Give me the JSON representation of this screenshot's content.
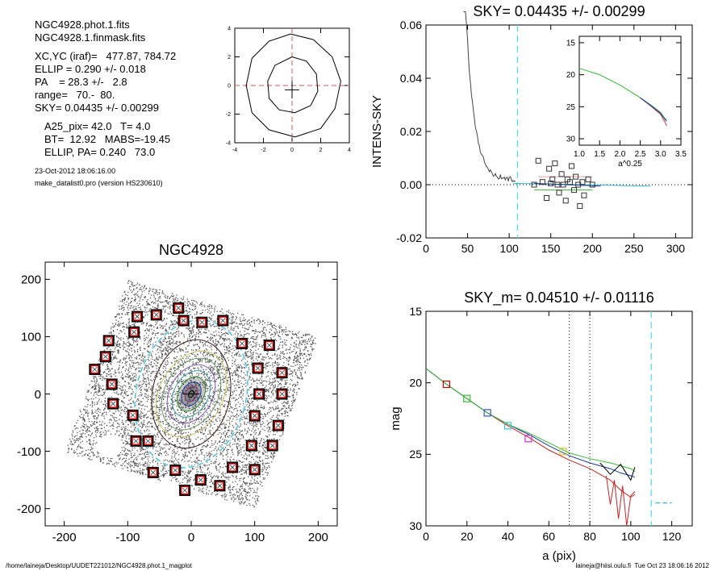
{
  "info": {
    "block1": [
      "NGC4928.phot.1.fits",
      "NGC4928.1.finmask.fits"
    ],
    "block2": [
      "XC,YC (iraf)=   477.87, 784.72",
      "ELLIP = 0.290 +/- 0.018",
      "PA    = 28.3 +/-   2.8",
      "range=   70.-  80.",
      "SKY= 0.04435 +/- 0.00299"
    ],
    "block3": [
      "A25_pix= 42.0   T= 4.0",
      "BT=  12.92   MABS=-19.45",
      "ELLIP, PA= 0.240   73.0"
    ],
    "date": "23-Oct-2012 18:06:16.00",
    "program": "make_datalist0.pro (version HS230610)"
  },
  "footer": {
    "left": "/home/laineja/Desktop/UUDET221012/NGC4928.phot.1_magplot",
    "right": "laineja@hiisi.oulu.fi  Tue Oct 23 18:06:16 2012"
  },
  "chart_data": [
    {
      "type": "line",
      "name": "ellipse-fit-inset",
      "xlim": [
        -4,
        4
      ],
      "ylim": [
        -4,
        4
      ],
      "xticks": [
        "-4",
        "-2",
        "0",
        "2",
        "4"
      ],
      "yticks": [
        "-4",
        "-2",
        "0",
        "2",
        "4"
      ]
    },
    {
      "type": "scatter",
      "name": "ngc4928-image",
      "title": "NGC4928",
      "xlim": [
        -230,
        230
      ],
      "ylim": [
        -230,
        230
      ],
      "xticks": [
        "-200",
        "-100",
        "0",
        "100",
        "200"
      ],
      "yticks": [
        "-200",
        "-100",
        "0",
        "100",
        "200"
      ],
      "center": [
        0,
        0
      ],
      "inner_ellipse": {
        "a": 70,
        "b": 50,
        "pa_deg": 28.3
      },
      "outer_ellipse": {
        "a": 80,
        "b": 58,
        "pa_deg": 28.3
      },
      "sky_boxes": [
        [
          -20,
          150
        ],
        [
          -55,
          138
        ],
        [
          -85,
          135
        ],
        [
          -90,
          108
        ],
        [
          -12,
          128
        ],
        [
          17,
          125
        ],
        [
          50,
          128
        ],
        [
          80,
          88
        ],
        [
          123,
          85
        ],
        [
          -130,
          93
        ],
        [
          -135,
          65
        ],
        [
          -152,
          43
        ],
        [
          -125,
          17
        ],
        [
          -123,
          -17
        ],
        [
          -92,
          -37
        ],
        [
          -87,
          -82
        ],
        [
          -68,
          -82
        ],
        [
          105,
          45
        ],
        [
          143,
          37
        ],
        [
          143,
          0
        ],
        [
          107,
          0
        ],
        [
          100,
          -38
        ],
        [
          137,
          -55
        ],
        [
          95,
          -90
        ],
        [
          128,
          -90
        ],
        [
          65,
          -128
        ],
        [
          100,
          -132
        ],
        [
          -60,
          -137
        ],
        [
          -25,
          -133
        ],
        [
          15,
          -150
        ],
        [
          45,
          -160
        ],
        [
          -10,
          -168
        ]
      ]
    },
    {
      "type": "scatter",
      "name": "intens-sky",
      "title": "SKY= 0.04435 +/- 0.00299",
      "ylabel": "INTENS-SKY",
      "xlim": [
        0,
        320
      ],
      "ylim": [
        -0.02,
        0.06
      ],
      "xticks": [
        "0",
        "50",
        "100",
        "150",
        "200",
        "250",
        "300"
      ],
      "yticks": [
        "-0.02",
        "0.00",
        "0.02",
        "0.04",
        "0.06"
      ],
      "profile_x": [
        45,
        50,
        55,
        60,
        65,
        70,
        75,
        80,
        85,
        90,
        95,
        100,
        105,
        108
      ],
      "profile_y": [
        0.062,
        0.046,
        0.035,
        0.027,
        0.021,
        0.017,
        0.013,
        0.01,
        0.0083,
        0.0065,
        0.0055,
        0.004,
        0.0035,
        0.004
      ],
      "sky_points_x": [
        130,
        135,
        140,
        145,
        148,
        150,
        152,
        155,
        158,
        160,
        163,
        165,
        168,
        170,
        173,
        175,
        178,
        180,
        183,
        185,
        188,
        190,
        195,
        200
      ],
      "sky_points_y": [
        0.0,
        0.009,
        0.001,
        -0.005,
        0.006,
        0.0005,
        0.002,
        0.008,
        0.0,
        -0.003,
        0.004,
        0.0,
        -0.006,
        0.002,
        0.001,
        0.007,
        -0.002,
        0.003,
        0.0,
        -0.008,
        0.001,
        -0.004,
        0.002,
        0.0
      ],
      "cyan_line_x": 110,
      "inset": {
        "xlabel": "a^0.25",
        "xlim": [
          1.0,
          3.5
        ],
        "ylim": [
          31,
          14
        ],
        "xticks": [
          "1.0",
          "1.5",
          "2.0",
          "2.5",
          "3.0",
          "3.5"
        ],
        "yticks": [
          "15",
          "20",
          "25",
          "30"
        ],
        "x": [
          1.0,
          1.5,
          2.0,
          2.5,
          2.8,
          3.0,
          3.1,
          3.15
        ],
        "y": [
          19.0,
          20.0,
          21.6,
          23.6,
          24.9,
          25.9,
          26.8,
          27.0
        ]
      }
    },
    {
      "type": "line",
      "name": "mag-profile",
      "title": "SKY_m=  0.04510 +/- 0.01116",
      "xlabel": "a (pix)",
      "ylabel": "mag",
      "xlim": [
        0,
        130
      ],
      "ylim": [
        30,
        15
      ],
      "xticks": [
        "0",
        "20",
        "40",
        "60",
        "80",
        "100",
        "120"
      ],
      "yticks": [
        "15",
        "20",
        "25",
        "30"
      ],
      "x": [
        0,
        10,
        20,
        30,
        40,
        50,
        60,
        70,
        80,
        90,
        95,
        100,
        102
      ],
      "green": [
        19.0,
        20.1,
        21.1,
        22.1,
        22.9,
        23.5,
        24.2,
        24.9,
        25.3,
        25.6,
        25.8,
        26.0,
        26.2
      ],
      "blue": [
        19.0,
        20.1,
        21.1,
        22.1,
        22.9,
        23.6,
        24.4,
        25.1,
        25.6,
        26.0,
        26.3,
        26.5,
        26.6
      ],
      "red": [
        19.0,
        20.1,
        21.1,
        22.1,
        23.0,
        23.8,
        24.7,
        25.4,
        26.0,
        26.8,
        27.5,
        28.0,
        27.8
      ],
      "markers": [
        [
          10,
          20.1,
          "#cc0000"
        ],
        [
          20,
          21.1,
          "#33bb33"
        ],
        [
          30,
          22.1,
          "#3355cc"
        ],
        [
          40,
          23.0,
          "#33cccc"
        ],
        [
          50,
          23.9,
          "#cc33cc"
        ],
        [
          67,
          24.8,
          "#cccc33"
        ]
      ],
      "vlines_dotted": [
        70,
        80
      ],
      "vline_dashed": 110,
      "sky_level_y": 28.4
    }
  ]
}
